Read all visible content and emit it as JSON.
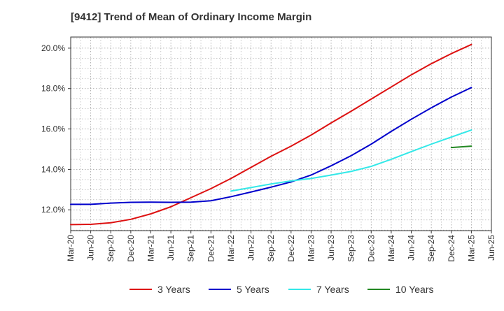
{
  "title": "[9412]  Trend of Mean of Ordinary Income Margin",
  "chart_data": {
    "type": "line",
    "title": "[9412]  Trend of Mean of Ordinary Income Margin",
    "xlabel": "",
    "ylabel": "",
    "x_ticks": [
      "Mar-20",
      "Jun-20",
      "Sep-20",
      "Dec-20",
      "Mar-21",
      "Jun-21",
      "Sep-21",
      "Dec-21",
      "Mar-22",
      "Jun-22",
      "Sep-22",
      "Dec-22",
      "Mar-23",
      "Jun-23",
      "Sep-23",
      "Dec-23",
      "Mar-24",
      "Jun-24",
      "Sep-24",
      "Dec-24",
      "Mar-25",
      "Jun-25"
    ],
    "y_ticks": [
      12.0,
      14.0,
      16.0,
      18.0,
      20.0
    ],
    "y_tick_format": "percent_1dp",
    "ylim": [
      10.97,
      20.55
    ],
    "grid": true,
    "legend_position": "bottom",
    "series": [
      {
        "name": "3 Years",
        "color": "#dd1111",
        "points": [
          [
            "Mar-20",
            11.27
          ],
          [
            "Jun-20",
            11.28
          ],
          [
            "Sep-20",
            11.36
          ],
          [
            "Dec-20",
            11.53
          ],
          [
            "Mar-21",
            11.8
          ],
          [
            "Jun-21",
            12.15
          ],
          [
            "Sep-21",
            12.6
          ],
          [
            "Dec-21",
            13.05
          ],
          [
            "Mar-22",
            13.55
          ],
          [
            "Jun-22",
            14.1
          ],
          [
            "Sep-22",
            14.65
          ],
          [
            "Dec-22",
            15.15
          ],
          [
            "Mar-23",
            15.7
          ],
          [
            "Jun-23",
            16.3
          ],
          [
            "Sep-23",
            16.88
          ],
          [
            "Dec-23",
            17.48
          ],
          [
            "Mar-24",
            18.08
          ],
          [
            "Jun-24",
            18.68
          ],
          [
            "Sep-24",
            19.23
          ],
          [
            "Dec-24",
            19.73
          ],
          [
            "Mar-25",
            20.18
          ]
        ]
      },
      {
        "name": "5 Years",
        "color": "#0000cc",
        "points": [
          [
            "Mar-20",
            12.27
          ],
          [
            "Jun-20",
            12.27
          ],
          [
            "Sep-20",
            12.33
          ],
          [
            "Dec-20",
            12.37
          ],
          [
            "Mar-21",
            12.38
          ],
          [
            "Jun-21",
            12.37
          ],
          [
            "Sep-21",
            12.38
          ],
          [
            "Dec-21",
            12.45
          ],
          [
            "Mar-22",
            12.65
          ],
          [
            "Jun-22",
            12.88
          ],
          [
            "Sep-22",
            13.12
          ],
          [
            "Dec-22",
            13.38
          ],
          [
            "Mar-23",
            13.72
          ],
          [
            "Jun-23",
            14.18
          ],
          [
            "Sep-23",
            14.68
          ],
          [
            "Dec-23",
            15.25
          ],
          [
            "Mar-24",
            15.88
          ],
          [
            "Jun-24",
            16.48
          ],
          [
            "Sep-24",
            17.05
          ],
          [
            "Dec-24",
            17.58
          ],
          [
            "Mar-25",
            18.05
          ]
        ]
      },
      {
        "name": "7 Years",
        "color": "#33e8e8",
        "points": [
          [
            "Mar-22",
            12.93
          ],
          [
            "Jun-22",
            13.1
          ],
          [
            "Sep-22",
            13.28
          ],
          [
            "Dec-22",
            13.43
          ],
          [
            "Mar-23",
            13.55
          ],
          [
            "Jun-23",
            13.72
          ],
          [
            "Sep-23",
            13.9
          ],
          [
            "Dec-23",
            14.15
          ],
          [
            "Mar-24",
            14.5
          ],
          [
            "Jun-24",
            14.88
          ],
          [
            "Sep-24",
            15.25
          ],
          [
            "Dec-24",
            15.6
          ],
          [
            "Mar-25",
            15.95
          ]
        ]
      },
      {
        "name": "10 Years",
        "color": "#228822",
        "points": [
          [
            "Dec-24",
            15.08
          ],
          [
            "Mar-25",
            15.15
          ]
        ]
      }
    ]
  }
}
